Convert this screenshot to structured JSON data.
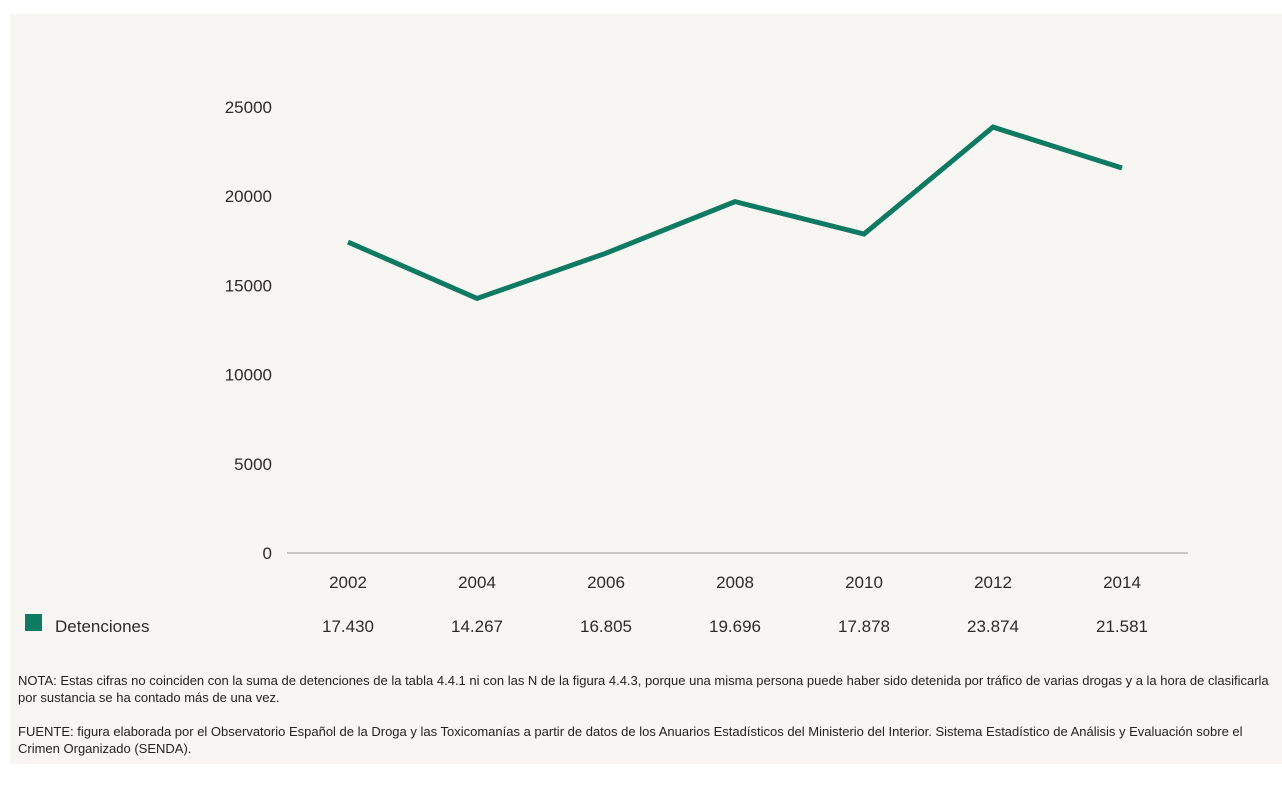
{
  "colors": {
    "series": "#0f7a62",
    "axis": "#9a9a9a",
    "background": "#f7f6f2",
    "text": "#2b2b2b"
  },
  "chart_data": {
    "type": "line",
    "x": [
      "2002",
      "2004",
      "2006",
      "2008",
      "2010",
      "2012",
      "2014"
    ],
    "series": [
      {
        "name": "Detenciones",
        "values": [
          17430,
          14267,
          16805,
          19696,
          17878,
          23874,
          21581
        ],
        "table_values": [
          "17.430",
          "14.267",
          "16.805",
          "19.696",
          "17.878",
          "23.874",
          "21.581"
        ]
      }
    ],
    "y_ticks": [
      "0",
      "5000",
      "10000",
      "15000",
      "20000",
      "25000"
    ],
    "ylim": [
      0,
      25000
    ],
    "grid": false,
    "legend": "bottom-left data table",
    "title": "",
    "xlabel": "",
    "ylabel": ""
  },
  "notes": {
    "nota": "NOTA: Estas cifras no coinciden con la suma de detenciones de la tabla 4.4.1 ni con las N de la figura 4.4.3, porque una misma persona puede haber sido detenida por tráfico de varias drogas y a la hora de clasificarla por sustancia se ha contado más de una vez.",
    "fuente": "FUENTE: figura elaborada por el Observatorio Español de la Droga y las Toxicomanías a partir de datos de los Anuarios Estadísticos del Ministerio del Interior. Sistema Estadístico de Análisis y Evaluación sobre el Crimen Organizado (SENDA)."
  }
}
